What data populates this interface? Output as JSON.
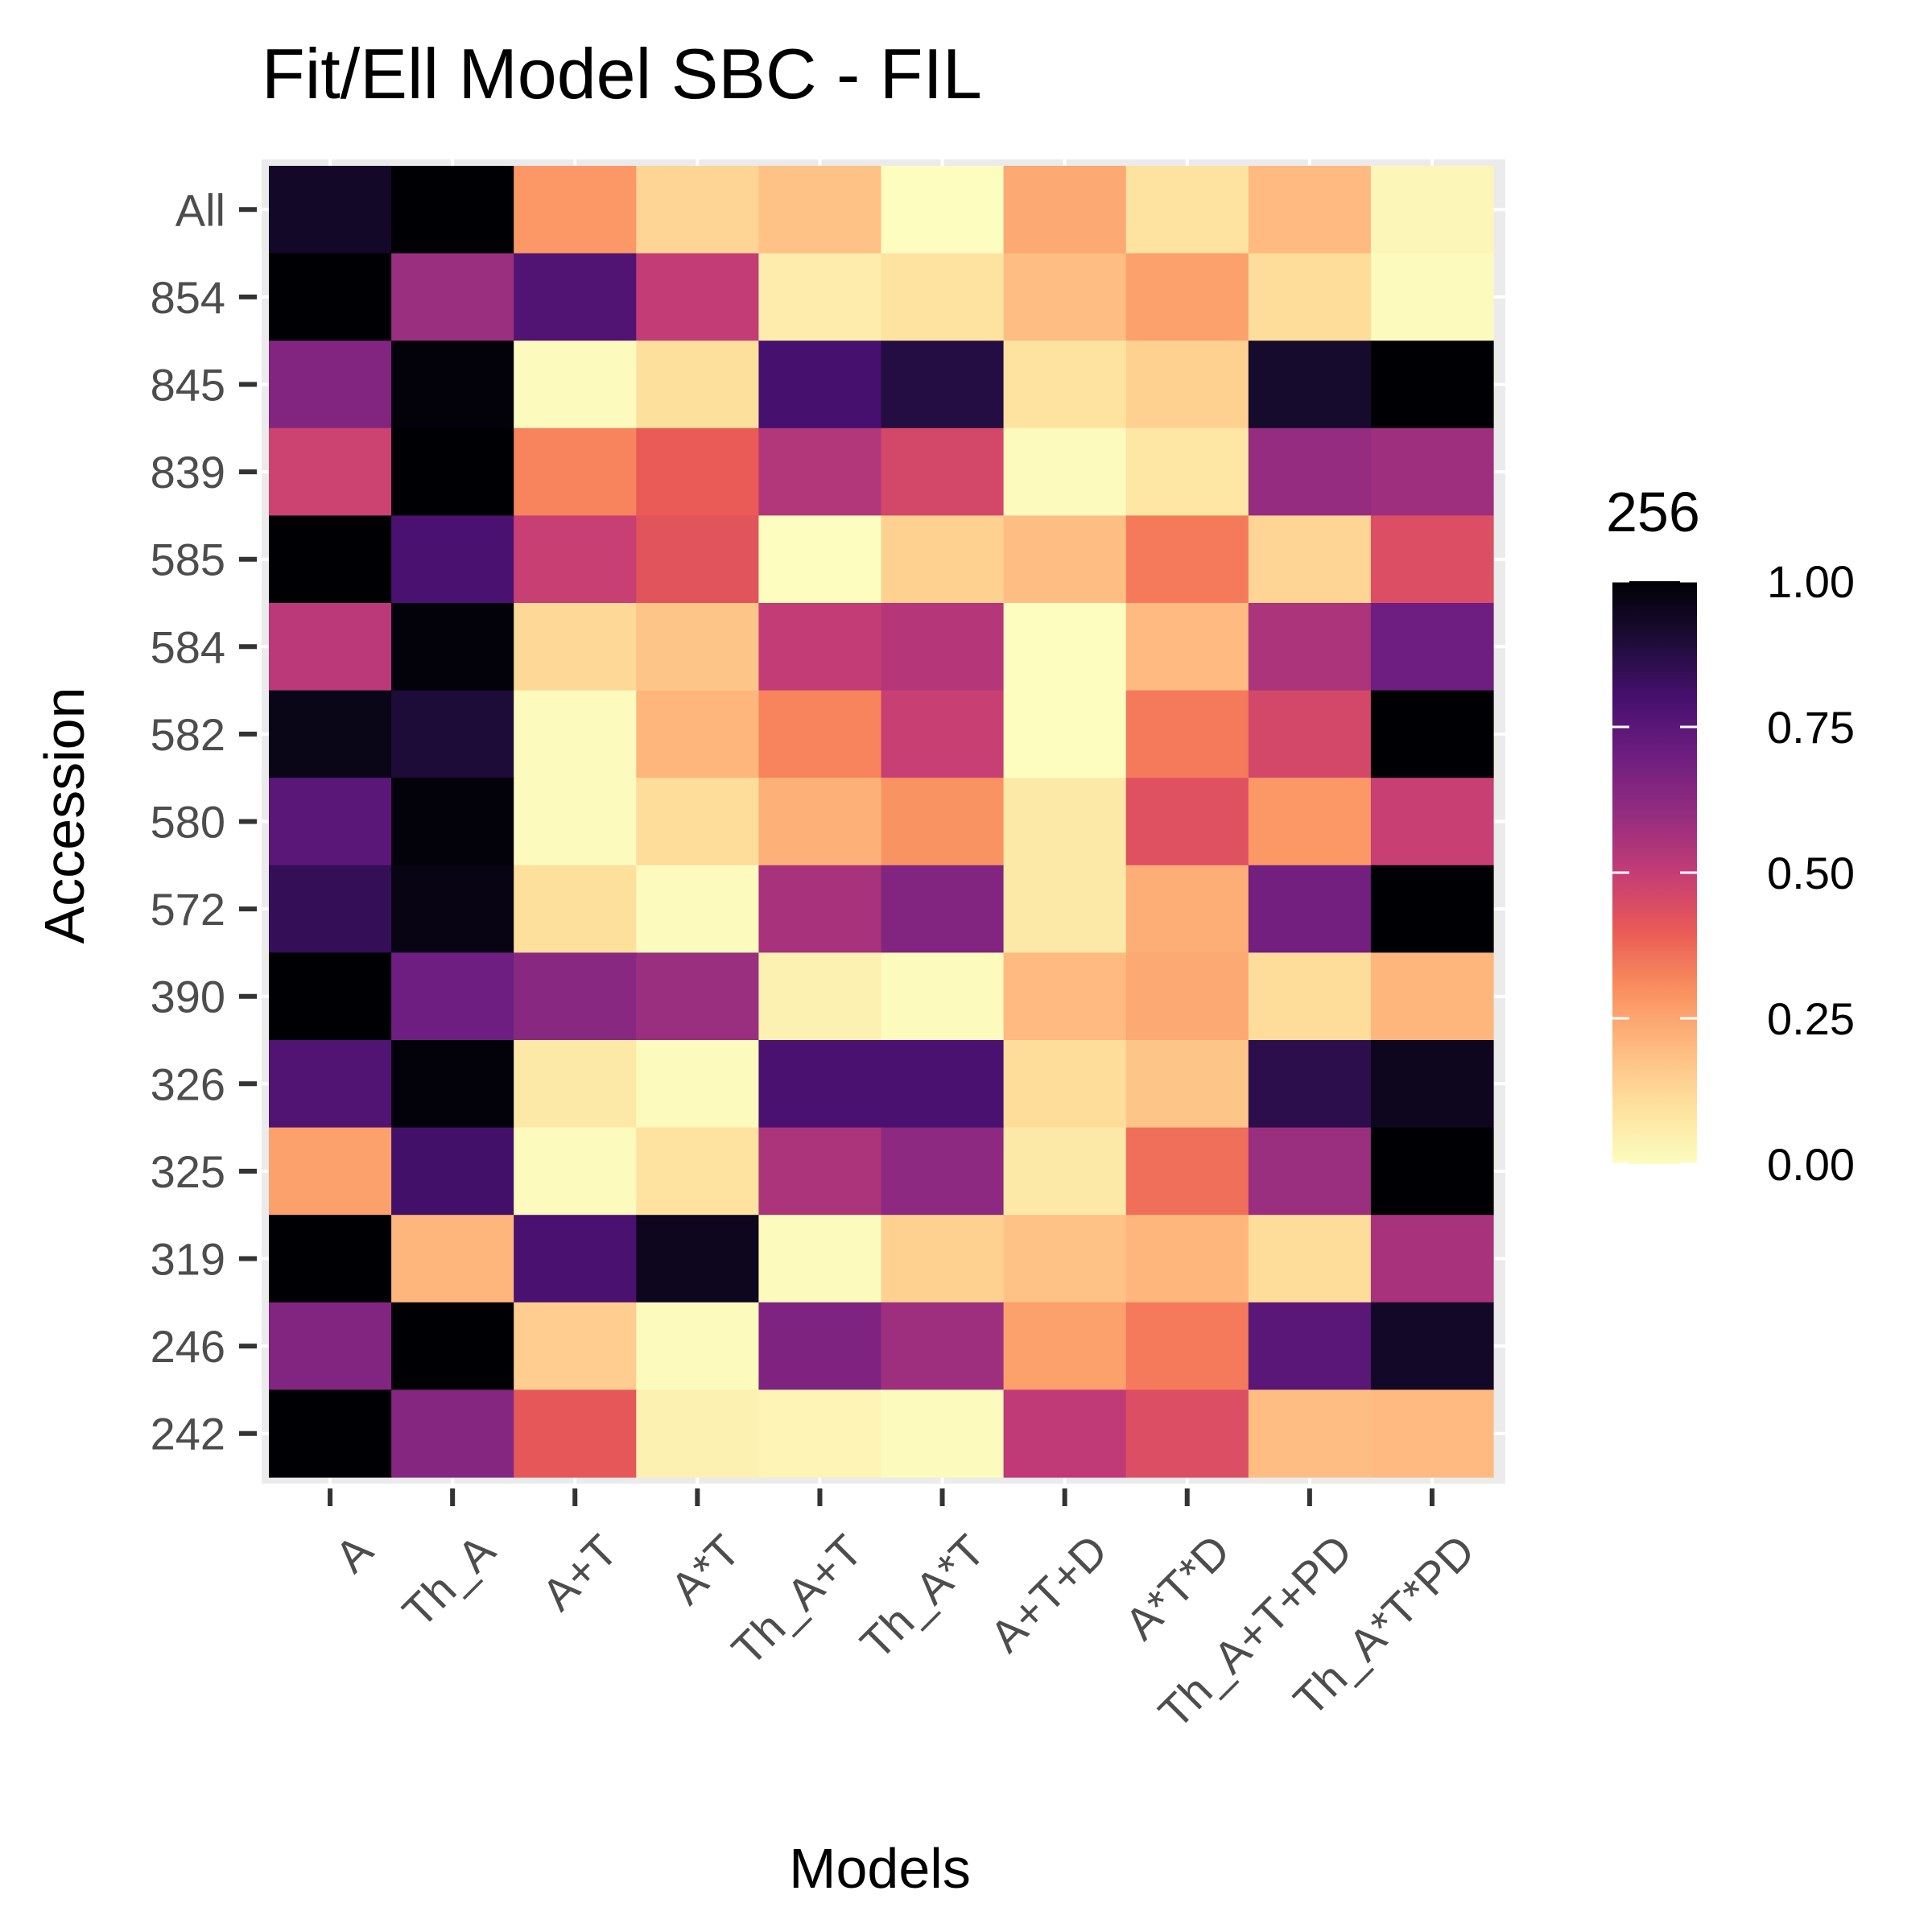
{
  "chart_data": {
    "type": "heatmap",
    "title": "Fit/Ell Model SBC - FIL",
    "xlabel": "Models",
    "ylabel": "Accession",
    "x_categories": [
      "A",
      "Th_A",
      "A+T",
      "A*T",
      "Th_A+T",
      "Th_A*T",
      "A+T+D",
      "A*T*D",
      "Th_A+T+PD",
      "Th_A*T*PD"
    ],
    "y_categories": [
      "All",
      "854",
      "845",
      "839",
      "585",
      "584",
      "582",
      "580",
      "572",
      "390",
      "326",
      "325",
      "319",
      "246",
      "242"
    ],
    "values": [
      [
        0.93,
        1.0,
        0.28,
        0.13,
        0.18,
        0.0,
        0.24,
        0.09,
        0.2,
        0.02
      ],
      [
        1.0,
        0.59,
        0.77,
        0.5,
        0.06,
        0.09,
        0.19,
        0.26,
        0.11,
        0.01
      ],
      [
        0.65,
        0.99,
        0.01,
        0.1,
        0.8,
        0.88,
        0.09,
        0.14,
        0.92,
        1.0
      ],
      [
        0.48,
        1.0,
        0.32,
        0.4,
        0.54,
        0.46,
        0.01,
        0.08,
        0.6,
        0.58
      ],
      [
        1.0,
        0.79,
        0.49,
        0.42,
        0.0,
        0.14,
        0.19,
        0.34,
        0.13,
        0.44
      ],
      [
        0.52,
        0.99,
        0.12,
        0.17,
        0.5,
        0.53,
        0.0,
        0.2,
        0.55,
        0.7
      ],
      [
        0.96,
        0.9,
        0.01,
        0.21,
        0.32,
        0.49,
        0.0,
        0.34,
        0.46,
        1.0
      ],
      [
        0.75,
        0.99,
        0.01,
        0.11,
        0.22,
        0.29,
        0.07,
        0.43,
        0.28,
        0.49
      ],
      [
        0.84,
        0.97,
        0.1,
        0.01,
        0.56,
        0.65,
        0.07,
        0.23,
        0.69,
        1.0
      ],
      [
        1.0,
        0.7,
        0.63,
        0.59,
        0.04,
        0.01,
        0.2,
        0.24,
        0.11,
        0.21
      ],
      [
        0.77,
        0.99,
        0.07,
        0.01,
        0.79,
        0.79,
        0.11,
        0.17,
        0.86,
        0.95
      ],
      [
        0.26,
        0.81,
        0.01,
        0.09,
        0.55,
        0.62,
        0.07,
        0.36,
        0.59,
        1.0
      ],
      [
        1.0,
        0.21,
        0.79,
        0.95,
        0.01,
        0.14,
        0.18,
        0.21,
        0.11,
        0.56
      ],
      [
        0.65,
        1.0,
        0.15,
        0.01,
        0.66,
        0.58,
        0.26,
        0.34,
        0.75,
        0.93
      ],
      [
        1.0,
        0.64,
        0.41,
        0.04,
        0.03,
        0.01,
        0.51,
        0.44,
        0.19,
        0.2
      ]
    ],
    "colorscale": "magma (reversed)",
    "legend": {
      "title": "256",
      "ticks": [
        "0.00",
        "0.25",
        "0.50",
        "0.75",
        "1.00"
      ],
      "range": [
        0,
        1
      ],
      "placement": "right"
    },
    "grid": true
  }
}
